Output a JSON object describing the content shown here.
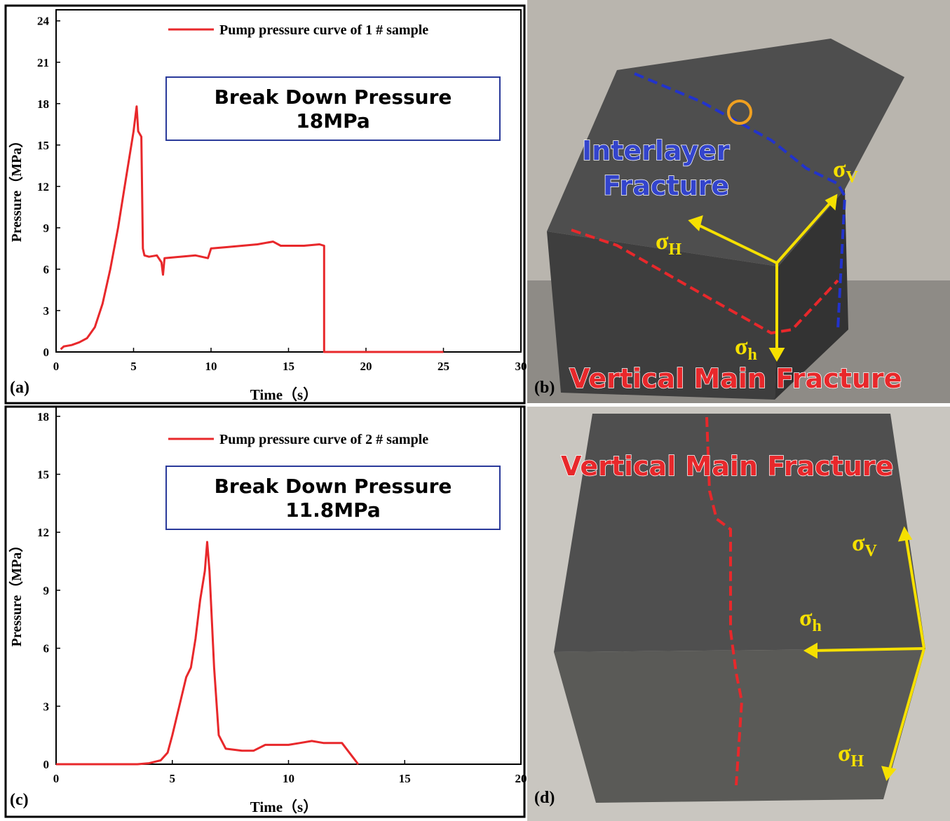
{
  "chart_data": [
    {
      "type": "line",
      "panel_label": "(a)",
      "x_label": "Time（s）",
      "y_label": "Pressure（MPa）",
      "annotation": [
        "Break Down Pressure",
        "18MPa"
      ],
      "xlim": [
        0,
        30
      ],
      "xticks": [
        0,
        5,
        10,
        15,
        20,
        25,
        30
      ],
      "ylim": [
        0,
        24.8
      ],
      "yticks": [
        0,
        3,
        6,
        9,
        12,
        15,
        18,
        21,
        24
      ],
      "series": [
        {
          "name": "Pump pressure curve of 1 # sample",
          "color": "#e8282b",
          "x": [
            0.3,
            0.5,
            1,
            1.5,
            2,
            2.5,
            3,
            3.5,
            4,
            4.5,
            5,
            5.2,
            5.3,
            5.5,
            5.6,
            5.7,
            6,
            6.5,
            6.8,
            6.9,
            7,
            8,
            9,
            9.8,
            10,
            11,
            12,
            13,
            14,
            14.5,
            15,
            16,
            17,
            17.3,
            17.3,
            20,
            25
          ],
          "values": [
            0.2,
            0.4,
            0.5,
            0.7,
            1.0,
            1.8,
            3.5,
            6,
            9,
            12.5,
            16,
            17.8,
            16,
            15.6,
            7.5,
            7,
            6.9,
            7,
            6.5,
            5.6,
            6.8,
            6.9,
            7,
            6.8,
            7.5,
            7.6,
            7.7,
            7.8,
            8,
            7.7,
            7.7,
            7.7,
            7.8,
            7.7,
            0,
            0,
            0
          ]
        }
      ]
    },
    {
      "type": "line",
      "panel_label": "(c)",
      "x_label": "Time（s）",
      "y_label": "Pressure（MPa）",
      "annotation": [
        "Break Down Pressure",
        "11.8MPa"
      ],
      "xlim": [
        0,
        20
      ],
      "xticks": [
        0,
        5,
        10,
        15,
        20
      ],
      "ylim": [
        0,
        18.5
      ],
      "yticks": [
        0,
        3,
        6,
        9,
        12,
        15,
        18
      ],
      "series": [
        {
          "name": "Pump pressure curve of 2 # sample",
          "color": "#e8282b",
          "x": [
            0,
            3.5,
            4,
            4.5,
            4.8,
            5,
            5.3,
            5.6,
            5.8,
            6,
            6.2,
            6.4,
            6.5,
            6.6,
            6.8,
            7,
            7.3,
            8,
            8.5,
            9,
            10,
            10.5,
            11,
            11.5,
            12,
            12.3,
            13
          ],
          "values": [
            0,
            0,
            0.05,
            0.2,
            0.6,
            1.5,
            3,
            4.5,
            5,
            6.5,
            8.5,
            10,
            11.5,
            10,
            5,
            1.5,
            0.8,
            0.7,
            0.7,
            1.0,
            1.0,
            1.1,
            1.2,
            1.1,
            1.1,
            1.1,
            0
          ]
        }
      ]
    }
  ],
  "photos": [
    {
      "panel_label": "(b)",
      "fracture_labels": [
        "Interlayer",
        "Fracture",
        "Vertical Main Fracture"
      ],
      "stress_labels": [
        {
          "symbol": "σ",
          "sub": "V"
        },
        {
          "symbol": "σ",
          "sub": "H"
        },
        {
          "symbol": "σ",
          "sub": "h"
        }
      ]
    },
    {
      "panel_label": "(d)",
      "fracture_labels": [
        "Vertical Main Fracture"
      ],
      "stress_labels": [
        {
          "symbol": "σ",
          "sub": "V"
        },
        {
          "symbol": "σ",
          "sub": "h"
        },
        {
          "symbol": "σ",
          "sub": "H"
        }
      ]
    }
  ]
}
